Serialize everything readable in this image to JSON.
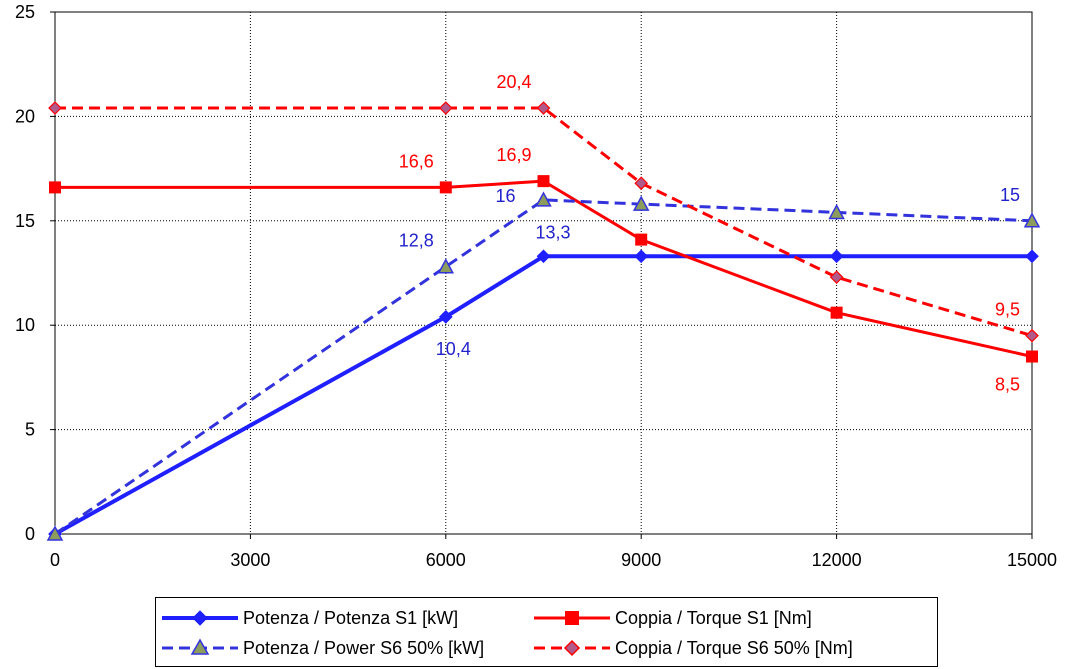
{
  "chart_data": {
    "type": "line",
    "x": [
      0,
      6000,
      7500,
      9000,
      12000,
      15000
    ],
    "xticks": [
      0,
      3000,
      6000,
      9000,
      12000,
      15000
    ],
    "xlim": [
      0,
      15000
    ],
    "yticks": [
      0,
      5,
      10,
      15,
      20,
      25
    ],
    "ylim": [
      0,
      25
    ],
    "grid": true,
    "title": "",
    "xlabel": "",
    "ylabel": "",
    "legend_position": "bottom",
    "series": [
      {
        "name": "Potenza / Potenza S1 [kW]",
        "values": [
          0,
          10.4,
          13.3,
          13.3,
          13.3,
          13.3
        ],
        "color": "#1f1fff",
        "dash": false,
        "marker": "diamond",
        "marker_fill": "#1f1fff",
        "width": 4
      },
      {
        "name": "Coppia / Torque S1 [Nm]",
        "values": [
          16.6,
          16.6,
          16.9,
          14.1,
          10.6,
          8.5
        ],
        "color": "#ff0000",
        "dash": false,
        "marker": "square",
        "marker_fill": "#ff0000",
        "width": 3
      },
      {
        "name": "Potenza / Power S6 50% [kW]",
        "values": [
          0,
          12.8,
          16,
          15.8,
          15.4,
          15
        ],
        "color": "#3333dd",
        "dash": true,
        "marker": "triangle",
        "marker_fill": "#8c9c5c",
        "width": 3
      },
      {
        "name": "Coppia / Torque S6 50% [Nm]",
        "values": [
          20.4,
          20.4,
          20.4,
          16.8,
          12.3,
          9.5
        ],
        "color": "#ff0000",
        "dash": true,
        "marker": "diamond",
        "marker_fill": "#b05a8c",
        "width": 3
      }
    ],
    "annotations": [
      {
        "text": "20,4",
        "x": 7500,
        "y": 20.4,
        "color": "#ff0000",
        "pos": "above-left"
      },
      {
        "text": "16,6",
        "x": 6000,
        "y": 16.6,
        "color": "#ff0000",
        "pos": "above-left"
      },
      {
        "text": "16,9",
        "x": 7500,
        "y": 16.9,
        "color": "#ff0000",
        "pos": "above-left"
      },
      {
        "text": "16",
        "x": 7500,
        "y": 16,
        "color": "#2222cc",
        "pos": "left"
      },
      {
        "text": "15",
        "x": 15000,
        "y": 15,
        "color": "#2222cc",
        "pos": "above-left"
      },
      {
        "text": "12,8",
        "x": 6000,
        "y": 12.8,
        "color": "#2222cc",
        "pos": "above-left"
      },
      {
        "text": "13,3",
        "x": 7500,
        "y": 13.3,
        "color": "#2222cc",
        "pos": "above-right"
      },
      {
        "text": "10,4",
        "x": 6000,
        "y": 10.4,
        "color": "#2222cc",
        "pos": "below"
      },
      {
        "text": "9,5",
        "x": 15000,
        "y": 9.5,
        "color": "#ff0000",
        "pos": "above-left"
      },
      {
        "text": "8,5",
        "x": 15000,
        "y": 8.5,
        "color": "#ff0000",
        "pos": "below-left"
      }
    ]
  }
}
